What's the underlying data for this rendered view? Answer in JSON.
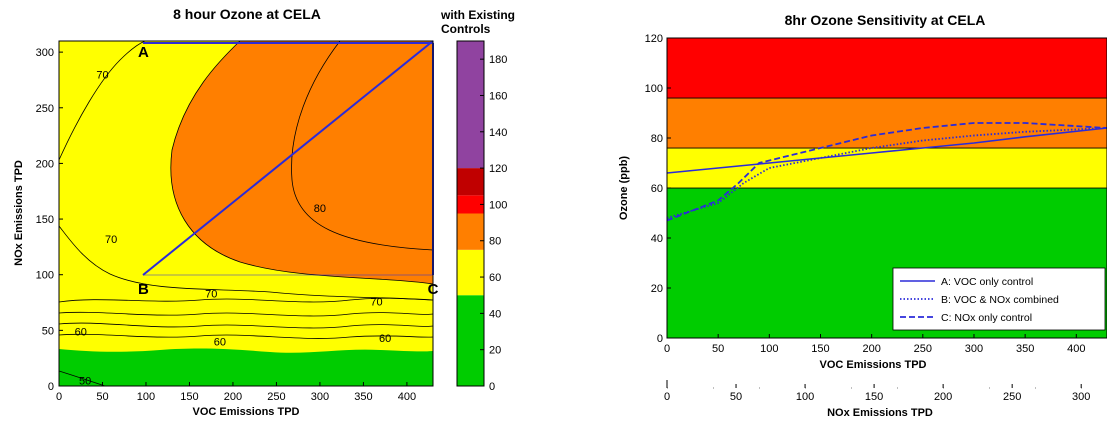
{
  "chart_data": [
    {
      "type": "contour",
      "title": "8 hour Ozone at CELA",
      "xlabel": "VOC Emissions TPD",
      "ylabel": "NOx Emissions TPD",
      "xlim": [
        0,
        430
      ],
      "ylim": [
        0,
        310
      ],
      "xticks": [
        0,
        50,
        100,
        150,
        200,
        250,
        300,
        350,
        400
      ],
      "yticks": [
        0,
        50,
        100,
        150,
        200,
        250,
        300
      ],
      "colorbar": {
        "title": "with Existing Controls",
        "range": [
          0,
          190
        ],
        "ticks": [
          0,
          20,
          40,
          60,
          80,
          100,
          120,
          140,
          160,
          180
        ],
        "bands": [
          {
            "from": 0,
            "to": 50,
            "color": "#00cc00"
          },
          {
            "from": 50,
            "to": 75,
            "color": "#ffff00"
          },
          {
            "from": 75,
            "to": 95,
            "color": "#ff7f00"
          },
          {
            "from": 95,
            "to": 105,
            "color": "#ff0000"
          },
          {
            "from": 105,
            "to": 120,
            "color": "#c00000"
          },
          {
            "from": 120,
            "to": 190,
            "color": "#9043a0"
          }
        ]
      },
      "points": [
        {
          "label": "A",
          "voc": 97,
          "nox": 310
        },
        {
          "label": "B",
          "voc": 97,
          "nox": 97
        },
        {
          "label": "C",
          "voc": 430,
          "nox": 97
        }
      ],
      "paths": [
        {
          "from": "B",
          "to": "C",
          "via": "diagonal"
        },
        {
          "from": "A",
          "to": "C",
          "via": "top-right"
        }
      ],
      "contour_labels": [
        {
          "text": "70",
          "voc": 50,
          "nox": 280
        },
        {
          "text": "70",
          "voc": 60,
          "nox": 132
        },
        {
          "text": "80",
          "voc": 300,
          "nox": 160
        },
        {
          "text": "70",
          "voc": 175,
          "nox": 83
        },
        {
          "text": "70",
          "voc": 365,
          "nox": 76
        },
        {
          "text": "60",
          "voc": 25,
          "nox": 49
        },
        {
          "text": "60",
          "voc": 185,
          "nox": 40
        },
        {
          "text": "60",
          "voc": 375,
          "nox": 43
        },
        {
          "text": "50",
          "voc": 30,
          "nox": 5
        }
      ]
    },
    {
      "type": "line",
      "title": "8hr Ozone Sensitivity at CELA",
      "xlabel": "VOC Emissions TPD",
      "ylabel": "Ozone (ppb)",
      "xlim": [
        0,
        430
      ],
      "ylim": [
        0,
        120
      ],
      "xticks": [
        0,
        50,
        100,
        150,
        200,
        250,
        300,
        350,
        400
      ],
      "yticks": [
        0,
        20,
        40,
        60,
        80,
        100,
        120
      ],
      "x2label": "NOx Emissions TPD",
      "x2lim": [
        0,
        310
      ],
      "x2ticks": [
        0,
        50,
        100,
        150,
        200,
        250,
        300
      ],
      "bands": [
        {
          "from": 0,
          "to": 60,
          "color": "#00cc00"
        },
        {
          "from": 60,
          "to": 76,
          "color": "#ffff00"
        },
        {
          "from": 76,
          "to": 96,
          "color": "#ff7f00"
        },
        {
          "from": 96,
          "to": 120,
          "color": "#ff0000"
        }
      ],
      "legend_position": "bottom-right",
      "series": [
        {
          "name": "A: VOC only control",
          "style": "solid",
          "x": [
            0,
            50,
            100,
            150,
            200,
            250,
            300,
            350,
            430
          ],
          "y": [
            66,
            68,
            70,
            72,
            74,
            76,
            78,
            80.5,
            84
          ]
        },
        {
          "name": "B: VOC & NOx combined",
          "style": "dotted",
          "x": [
            0,
            50,
            75,
            100,
            150,
            200,
            250,
            300,
            350,
            430
          ],
          "y": [
            48,
            54,
            62,
            68,
            72,
            76,
            79,
            81,
            82.5,
            84
          ]
        },
        {
          "name": "C: NOx only control",
          "style": "dashed",
          "x": [
            0,
            50,
            70,
            90,
            150,
            200,
            250,
            300,
            350,
            430
          ],
          "y": [
            47,
            55,
            62,
            70,
            76,
            81,
            84,
            86,
            86,
            84
          ]
        }
      ]
    }
  ]
}
